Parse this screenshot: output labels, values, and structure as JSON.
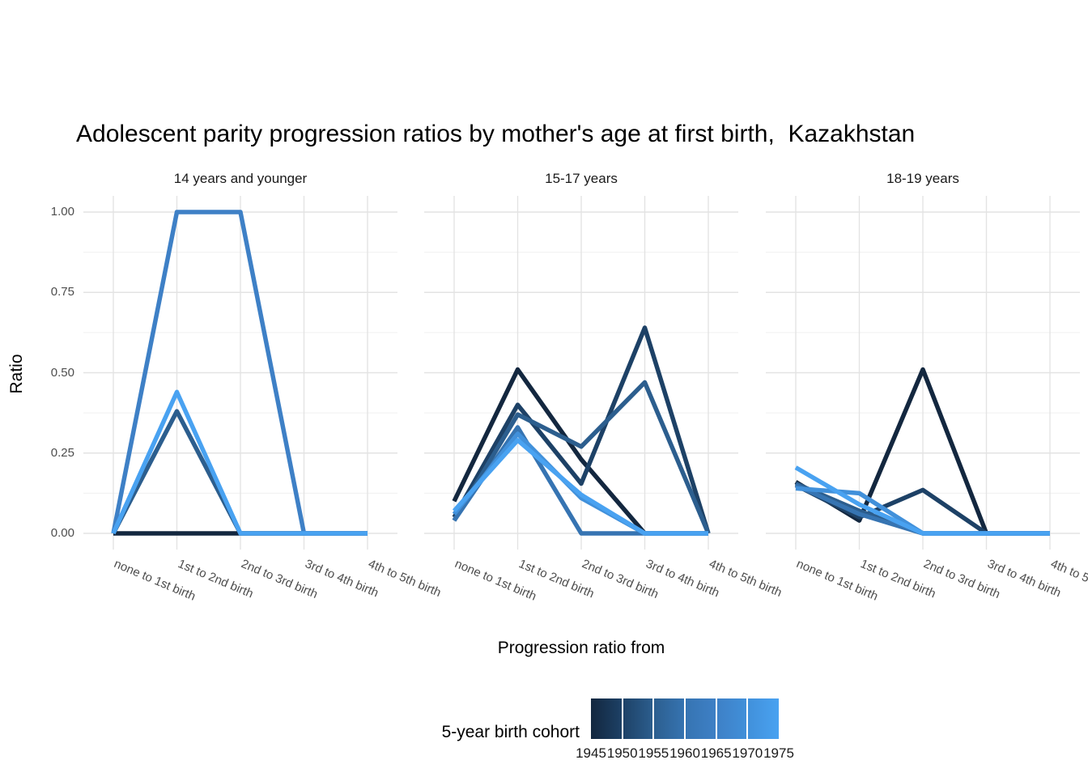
{
  "title": "Adolescent parity progression ratios by mother's age at first birth,  Kazakhstan",
  "y_axis": {
    "label": "Ratio",
    "tick_labels": [
      "0.00",
      "0.25",
      "0.50",
      "0.75",
      "1.00"
    ],
    "tick_values": [
      0,
      0.25,
      0.5,
      0.75,
      1.0
    ],
    "minor_values": [
      0.125,
      0.375,
      0.625,
      0.875
    ]
  },
  "x_axis": {
    "label": "Progression ratio from"
  },
  "legend": {
    "title": "5-year birth cohort",
    "tick_labels": [
      "1945",
      "1950",
      "1955",
      "1960",
      "1965",
      "1970",
      "1975"
    ],
    "gradient_colors": [
      "#13273F",
      "#1D4166",
      "#2C5E8E",
      "#3674B2",
      "#3E80C6",
      "#4190DA",
      "#49A2F1"
    ]
  },
  "colors": {
    "grid_major": "#e3e3e3",
    "grid_minor": "#f0f0f0",
    "background": "#ffffff"
  },
  "chart_data": {
    "type": "line",
    "legend_position": "bottom",
    "grid": "horizontal major+minor, vertical major at categories",
    "ylim": [
      0,
      1
    ],
    "categories": [
      "none to 1st birth",
      "1st to 2nd birth",
      "2nd to 3rd birth",
      "3rd to 4th birth",
      "4th to 5th birth"
    ],
    "facets": [
      {
        "label": "14 years and younger",
        "series": [
          {
            "cohort": "1945",
            "color": "#13273F",
            "values": [
              0,
              0,
              0,
              0,
              0
            ]
          },
          {
            "cohort": "1955",
            "color": "#2C5E8E",
            "values": [
              0,
              0.38,
              0,
              0,
              0
            ]
          },
          {
            "cohort": "1965",
            "color": "#3E80C6",
            "values": [
              0,
              1.0,
              1.0,
              0,
              0
            ]
          },
          {
            "cohort": "1975",
            "color": "#49A2F1",
            "values": [
              0,
              0.44,
              0,
              0,
              0
            ]
          }
        ]
      },
      {
        "label": "15-17 years",
        "series": [
          {
            "cohort": "1945",
            "color": "#13273F",
            "values": [
              0.1,
              0.51,
              0.23,
              0,
              0
            ]
          },
          {
            "cohort": "1950",
            "color": "#1D4166",
            "values": [
              0.05,
              0.4,
              0.155,
              0.64,
              0
            ]
          },
          {
            "cohort": "1955",
            "color": "#2C5E8E",
            "values": [
              0.04,
              0.37,
              0.27,
              0.47,
              0
            ]
          },
          {
            "cohort": "1960",
            "color": "#3674B2",
            "values": [
              0.04,
              0.33,
              0,
              0,
              0
            ]
          },
          {
            "cohort": "1970",
            "color": "#4190DA",
            "values": [
              0.06,
              0.31,
              0.11,
              0,
              0
            ]
          },
          {
            "cohort": "1975",
            "color": "#49A2F1",
            "values": [
              0.07,
              0.29,
              0.12,
              0,
              0
            ]
          }
        ]
      },
      {
        "label": "18-19 years",
        "series": [
          {
            "cohort": "1945",
            "color": "#13273F",
            "values": [
              0.16,
              0.04,
              0.51,
              0,
              0
            ]
          },
          {
            "cohort": "1950",
            "color": "#1D4166",
            "values": [
              0.15,
              0.05,
              0.135,
              0,
              0
            ]
          },
          {
            "cohort": "1955",
            "color": "#2C5E8E",
            "values": [
              0.155,
              0.07,
              0,
              0,
              0
            ]
          },
          {
            "cohort": "1960",
            "color": "#3674B2",
            "values": [
              0.15,
              0.06,
              0,
              0,
              0
            ]
          },
          {
            "cohort": "1970",
            "color": "#4190DA",
            "values": [
              0.14,
              0.125,
              0,
              0,
              0
            ]
          },
          {
            "cohort": "1975",
            "color": "#49A2F1",
            "values": [
              0.205,
              0.09,
              0,
              0,
              0
            ]
          }
        ]
      }
    ]
  }
}
